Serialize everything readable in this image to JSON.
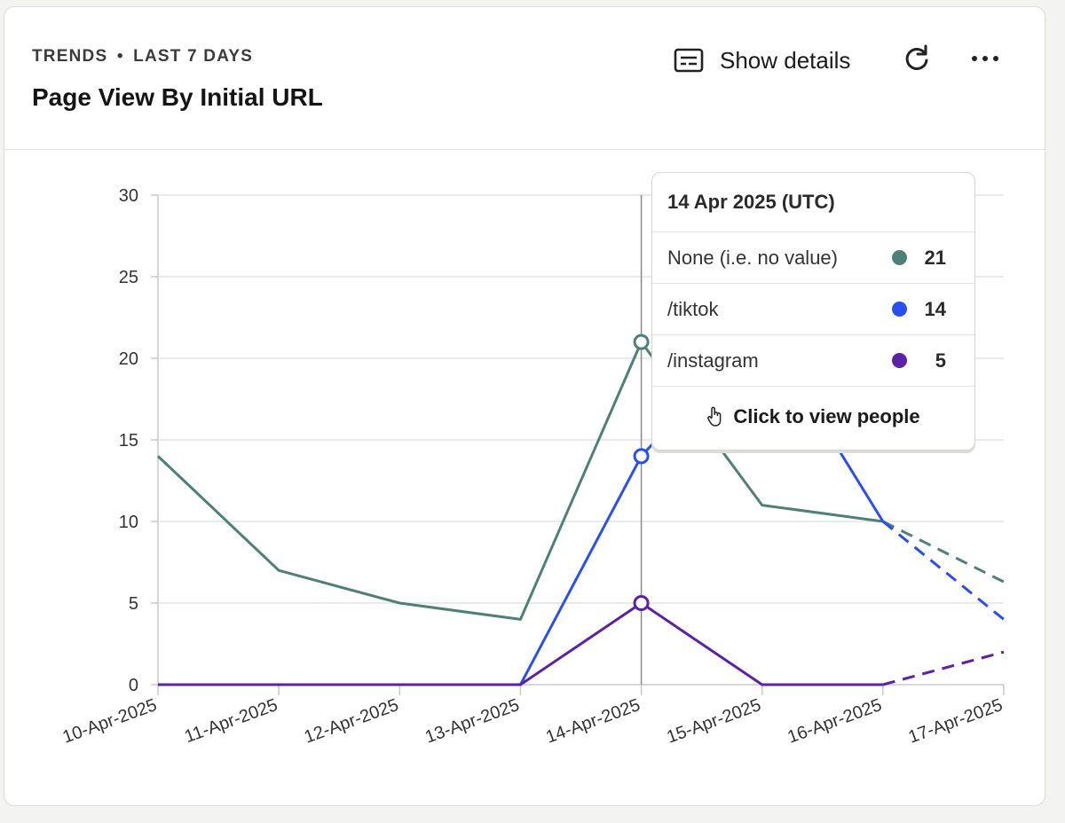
{
  "header": {
    "eyebrow_left": "TRENDS",
    "eyebrow_sep": "•",
    "eyebrow_right": "LAST 7 DAYS",
    "title": "Page View By Initial URL",
    "show_details_label": "Show details",
    "refresh_icon": "refresh-icon",
    "more_icon": "more-horizontal-icon"
  },
  "tooltip": {
    "date": "14 Apr 2025 (UTC)",
    "rows": [
      {
        "label": "None (i.e. no value)",
        "value": "21",
        "color": "#4f8077"
      },
      {
        "label": "/tiktok",
        "value": "14",
        "color": "#2b4ef0"
      },
      {
        "label": "/instagram",
        "value": "5",
        "color": "#5b21a6"
      }
    ],
    "action_label": "Click to view people"
  },
  "chart_data": {
    "type": "line",
    "categories": [
      "10-Apr-2025",
      "11-Apr-2025",
      "12-Apr-2025",
      "13-Apr-2025",
      "14-Apr-2025",
      "15-Apr-2025",
      "16-Apr-2025",
      "17-Apr-2025"
    ],
    "ylim": [
      0,
      30
    ],
    "yticks": [
      0,
      5,
      10,
      15,
      20,
      25,
      30
    ],
    "grid": true,
    "highlight_index": 4,
    "dashed_from_index": 6,
    "series": [
      {
        "name": "None (i.e. no value)",
        "color": "#4f8077",
        "values": [
          14,
          7,
          5,
          4,
          21,
          11,
          10,
          6.3
        ]
      },
      {
        "name": "/tiktok",
        "color": "#2b4ef0",
        "values": [
          0,
          0,
          0,
          0,
          14,
          22,
          10,
          4
        ]
      },
      {
        "name": "/instagram",
        "color": "#5b21a6",
        "values": [
          0,
          0,
          0,
          0,
          5,
          0,
          0,
          2
        ]
      }
    ]
  }
}
